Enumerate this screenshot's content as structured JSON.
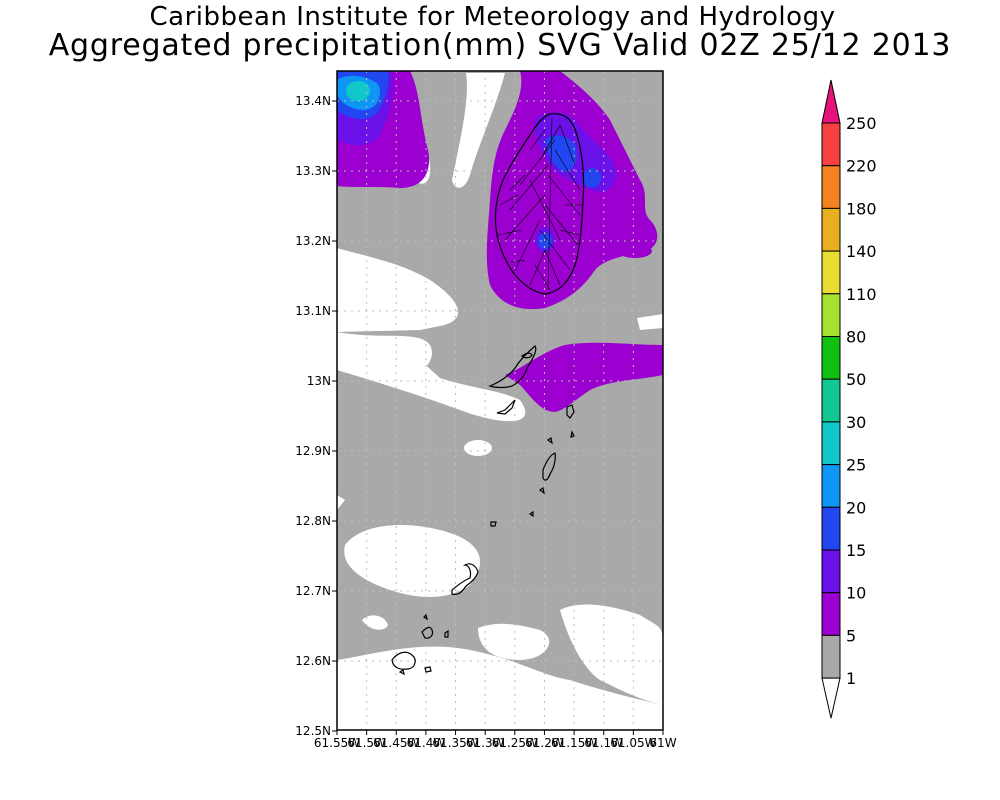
{
  "title_line1": "Caribbean Institute for Meteorology and Hydrology",
  "title_line2": "Aggregated precipitation(mm) SVG Valid 02Z 25/12 2013",
  "colors": {
    "no_rain": "#ffffff",
    "band_1_5": "#a9a9a9",
    "band_5_10": "#9b00d0",
    "band_10_15": "#6a10e8",
    "band_15_20": "#2246f0",
    "band_20_25": "#0e96f5",
    "band_25_30": "#10c8c8",
    "coastline": "#000000",
    "grid": "#bdbdbd"
  },
  "map": {
    "lat_labels": [
      "13.4N",
      "13.3N",
      "13.2N",
      "13.1N",
      "13N",
      "12.9N",
      "12.8N",
      "12.7N",
      "12.6N",
      "12.5N"
    ],
    "lon_labels": [
      "61.55W",
      "61.5W",
      "61.45W",
      "61.4W",
      "61.35W",
      "61.3W",
      "61.25W",
      "61.2W",
      "61.15W",
      "61.1W",
      "61.05W",
      "61W"
    ]
  },
  "colorbar": {
    "labels": [
      "250",
      "220",
      "180",
      "140",
      "110",
      "80",
      "50",
      "30",
      "25",
      "20",
      "15",
      "10",
      "5",
      "1"
    ],
    "band_colors": [
      "#e8137a",
      "#f84040",
      "#f58220",
      "#e8b020",
      "#e8dc30",
      "#a8e030",
      "#10c010",
      "#10c890",
      "#10c8c8",
      "#0e96f5",
      "#2246f0",
      "#6a10e8",
      "#9b00d0",
      "#a9a9a9",
      "#ffffff"
    ]
  }
}
